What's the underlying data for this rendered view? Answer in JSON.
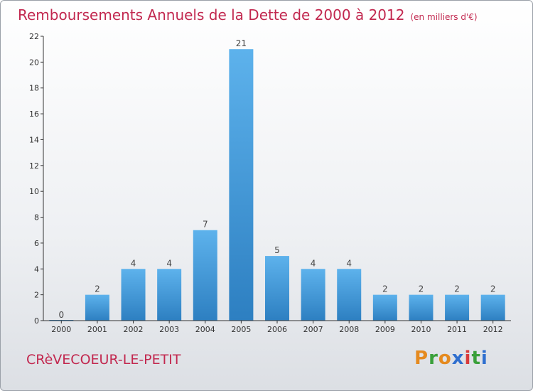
{
  "title": "Remboursements Annuels de la Dette de 2000 à 2012",
  "unit": "(en milliers d'€)",
  "commune": "CRèVECOEUR-LE-PETIT",
  "logo": {
    "text": "Proxiti",
    "letters": [
      "P",
      "r",
      "o",
      "x",
      "i",
      "t",
      "i"
    ],
    "colors": [
      "#e58a1f",
      "#3aa03a",
      "#e58a1f",
      "#2f6fcf",
      "#d83b3b",
      "#3aa03a",
      "#2f6fcf"
    ]
  },
  "colors": {
    "title": "#c2284f",
    "bar_top": "#5db2ec",
    "bar_bottom": "#2d7fc1",
    "axis": "#333333"
  },
  "chart_data": {
    "type": "bar",
    "title": "Remboursements Annuels de la Dette de 2000 à 2012",
    "ylabel": "en milliers d'€",
    "xlabel": "",
    "categories": [
      "2000",
      "2001",
      "2002",
      "2003",
      "2004",
      "2005",
      "2006",
      "2007",
      "2008",
      "2009",
      "2010",
      "2011",
      "2012"
    ],
    "values": [
      0,
      2,
      4,
      4,
      7,
      21,
      5,
      4,
      4,
      2,
      2,
      2,
      2
    ],
    "ylim": [
      0,
      22
    ],
    "yticks": [
      0,
      2,
      4,
      6,
      8,
      10,
      12,
      14,
      16,
      18,
      20,
      22
    ],
    "grid": false
  }
}
